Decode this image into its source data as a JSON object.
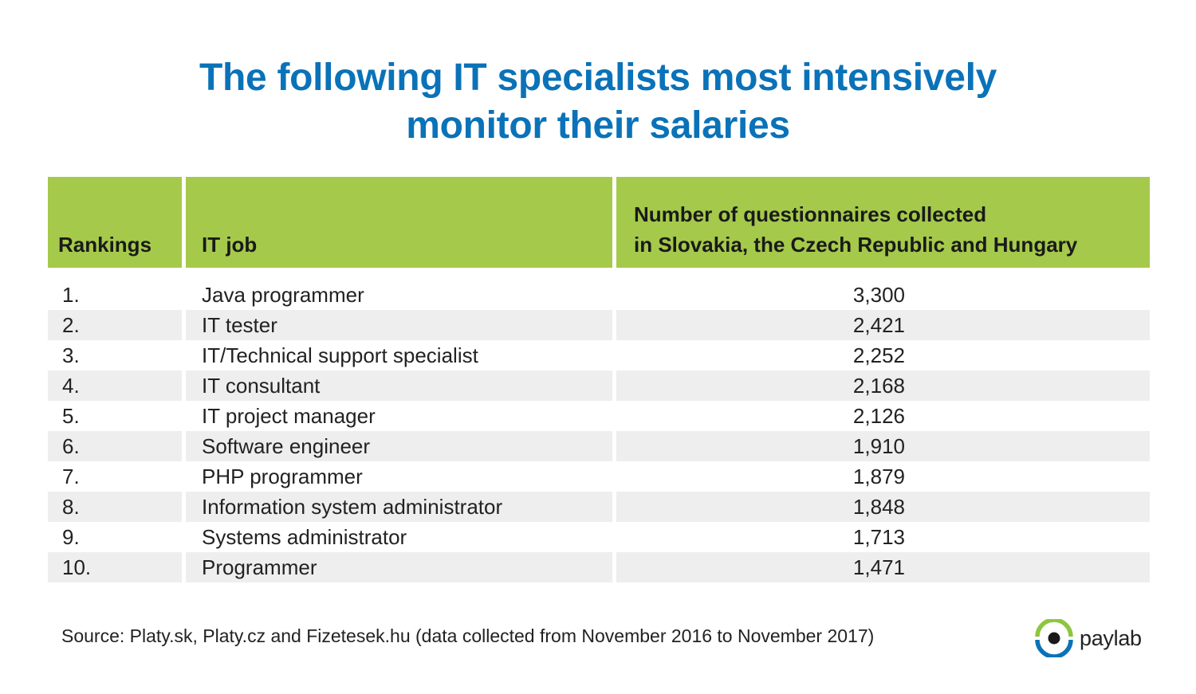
{
  "title_lines": [
    "The following IT specialists most intensively",
    "monitor their salaries"
  ],
  "colors": {
    "title": "#0a72b8",
    "header_bg": "#a5c94a",
    "row_alt_bg": "#eeeeee",
    "logo_green": "#8dc63f",
    "logo_blue": "#0a72b8"
  },
  "chart_data": {
    "type": "table",
    "columns": {
      "rank": "Rankings",
      "job": "IT job",
      "count_lines": [
        "Number of questionnaires collected",
        "in Slovakia, the Czech Republic and Hungary"
      ]
    },
    "rows": [
      {
        "rank": "1.",
        "job": "Java programmer",
        "count": "3,300"
      },
      {
        "rank": "2.",
        "job": "IT tester",
        "count": "2,421"
      },
      {
        "rank": "3.",
        "job": "IT/Technical support specialist",
        "count": "2,252"
      },
      {
        "rank": "4.",
        "job": "IT consultant",
        "count": "2,168"
      },
      {
        "rank": "5.",
        "job": "IT project manager",
        "count": "2,126"
      },
      {
        "rank": "6.",
        "job": "Software engineer",
        "count": "1,910"
      },
      {
        "rank": "7.",
        "job": "PHP programmer",
        "count": "1,879"
      },
      {
        "rank": "8.",
        "job": "Information system administrator",
        "count": "1,848"
      },
      {
        "rank": "9.",
        "job": "Systems administrator",
        "count": "1,713"
      },
      {
        "rank": "10.",
        "job": "Programmer",
        "count": "1,471"
      }
    ]
  },
  "source": "Source: Platy.sk, Platy.cz and Fizetesek.hu (data collected from November 2016 to November 2017)",
  "logo": {
    "text": "paylab",
    "icon": "eye-icon"
  }
}
